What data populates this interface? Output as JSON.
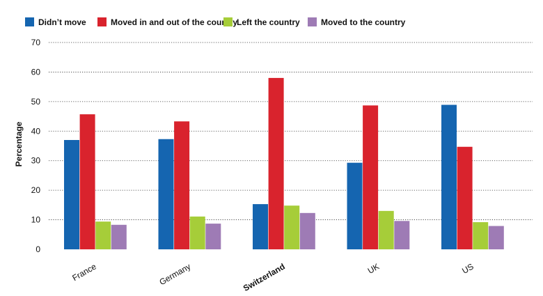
{
  "chart_data": {
    "type": "bar",
    "title": "",
    "xlabel": "",
    "ylabel": "Percentage",
    "ylim": [
      0,
      70
    ],
    "yticks": [
      0,
      10,
      20,
      30,
      40,
      50,
      60,
      70
    ],
    "grid": true,
    "legend_position": "top-left",
    "categories": [
      "France",
      "Germany",
      "Switzerland",
      "UK",
      "US"
    ],
    "highlighted_category": "Switzerland",
    "series": [
      {
        "name": "Didn’t move",
        "color": "#1565b0",
        "values": [
          37,
          37.3,
          15.3,
          29.3,
          48.9
        ]
      },
      {
        "name": "Moved in and out of the country",
        "color": "#d9232d",
        "values": [
          45.7,
          43.3,
          58,
          48.7,
          34.7
        ]
      },
      {
        "name": "Left the country",
        "color": "#a6cd39",
        "values": [
          9.4,
          11.1,
          14.8,
          13,
          9.2
        ]
      },
      {
        "name": "Moved to the country",
        "color": "#9e7bb5",
        "values": [
          8.3,
          8.7,
          12.3,
          9.6,
          7.9
        ]
      }
    ]
  }
}
